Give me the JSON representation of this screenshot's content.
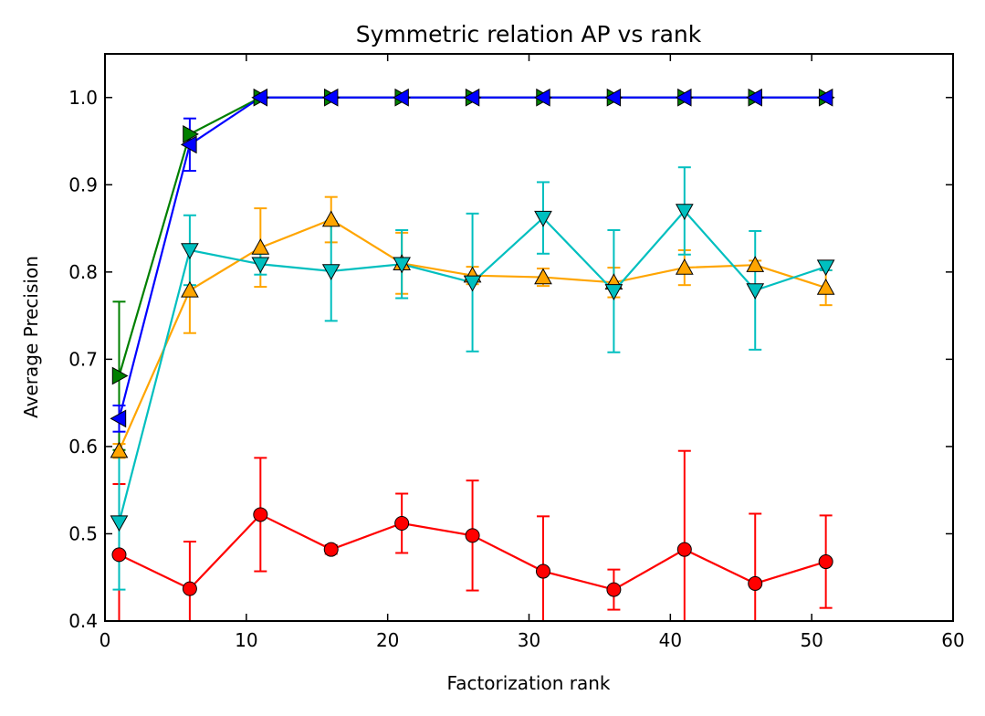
{
  "chart_data": {
    "type": "line",
    "title": "Symmetric relation AP vs rank",
    "xlabel": "Factorization rank",
    "ylabel": "Average Precision",
    "xlim": [
      0,
      60
    ],
    "ylim": [
      0.4,
      1.05
    ],
    "xticks": [
      0,
      10,
      20,
      30,
      40,
      50,
      60
    ],
    "yticks": [
      0.4,
      0.5,
      0.6,
      0.7,
      0.8,
      0.9,
      1.0
    ],
    "xtick_labels": [
      "0",
      "10",
      "20",
      "30",
      "40",
      "50",
      "60"
    ],
    "ytick_labels": [
      "0.4",
      "0.5",
      "0.6",
      "0.7",
      "0.8",
      "0.9",
      "1.0"
    ],
    "grid": false,
    "legend": "none",
    "x": [
      1,
      6,
      11,
      16,
      21,
      26,
      31,
      36,
      41,
      46,
      51
    ],
    "series": [
      {
        "color": "#ff0000",
        "marker": "circle",
        "values": [
          0.476,
          0.437,
          0.522,
          0.482,
          0.512,
          0.498,
          0.457,
          0.436,
          0.482,
          0.443,
          0.468
        ],
        "errors": [
          0.081,
          0.054,
          0.065,
          0.005,
          0.034,
          0.063,
          0.063,
          0.023,
          0.113,
          0.08,
          0.053
        ]
      },
      {
        "color": "#ffa500",
        "marker": "triangle-up",
        "values": [
          0.595,
          0.779,
          0.828,
          0.86,
          0.81,
          0.796,
          0.794,
          0.788,
          0.805,
          0.808,
          0.782
        ],
        "errors": [
          0.008,
          0.049,
          0.045,
          0.026,
          0.035,
          0.01,
          0.01,
          0.017,
          0.02,
          0.005,
          0.02
        ]
      },
      {
        "color": "#00bfbf",
        "marker": "triangle-down",
        "values": [
          0.513,
          0.825,
          0.809,
          0.801,
          0.809,
          0.788,
          0.862,
          0.778,
          0.87,
          0.779,
          0.806
        ],
        "errors": [
          0.077,
          0.04,
          0.012,
          0.057,
          0.039,
          0.079,
          0.041,
          0.07,
          0.05,
          0.068,
          0.004
        ]
      },
      {
        "color": "#008000",
        "marker": "triangle-right",
        "values": [
          0.681,
          0.958,
          1.0,
          1.0,
          1.0,
          1.0,
          1.0,
          1.0,
          1.0,
          1.0,
          1.0
        ],
        "errors": [
          0.085,
          0.0,
          0,
          0,
          0,
          0,
          0,
          0,
          0,
          0,
          0
        ]
      },
      {
        "color": "#0000ff",
        "marker": "triangle-left",
        "values": [
          0.632,
          0.946,
          1.0,
          1.0,
          1.0,
          1.0,
          1.0,
          1.0,
          1.0,
          1.0,
          1.0
        ],
        "errors": [
          0.015,
          0.03,
          0,
          0,
          0,
          0,
          0,
          0,
          0,
          0,
          0
        ]
      }
    ]
  }
}
